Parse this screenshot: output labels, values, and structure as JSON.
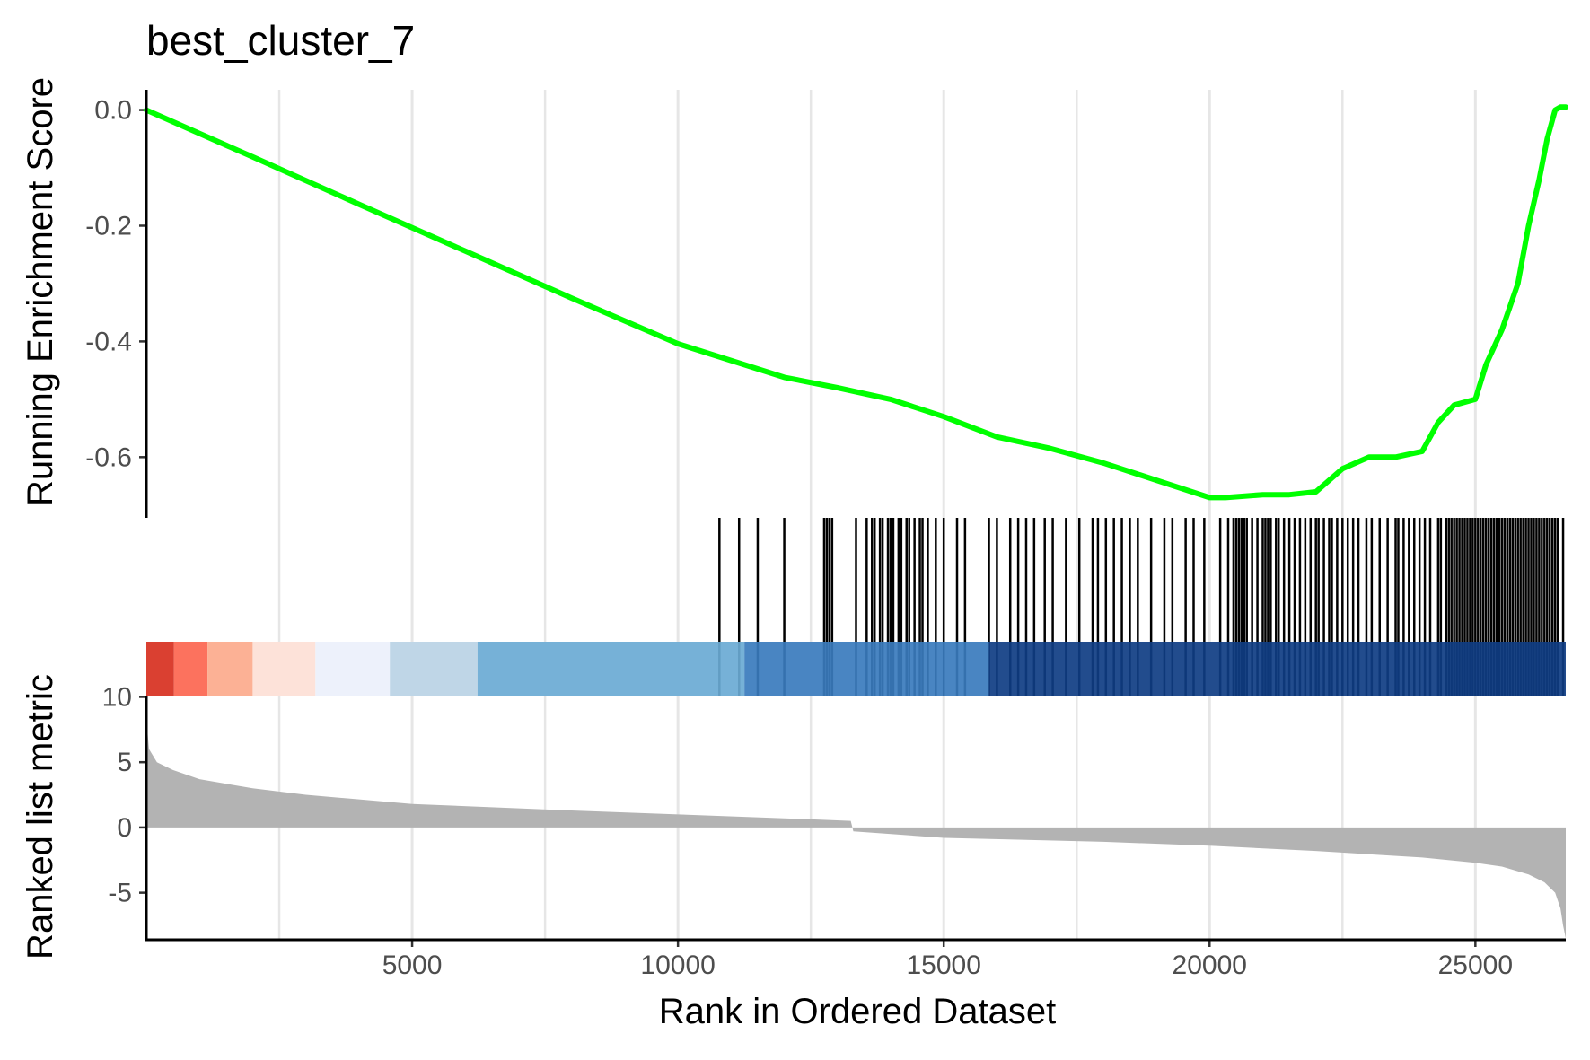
{
  "chart_data": {
    "type": "line",
    "title": "best_cluster_7",
    "xlabel": "Rank in Ordered Dataset",
    "xlim": [
      0,
      26700
    ],
    "x_ticks": [
      "5000",
      "10000",
      "15000",
      "20000",
      "25000"
    ],
    "grid": "vertical major and minor lines in upper panels",
    "panels": [
      {
        "name": "running_enrichment",
        "ylabel": "Running Enrichment Score",
        "ylim": [
          -0.705,
          0.035
        ],
        "y_ticks": [
          "0.0",
          "-0.2",
          "-0.4",
          "-0.6"
        ],
        "series": [
          {
            "color": "#00ff00",
            "x": [
              0,
              2000,
              4000,
              6000,
              8000,
              10000,
              12000,
              13000,
              14000,
              15000,
              16000,
              17000,
              18000,
              19000,
              20000,
              20300,
              21000,
              21500,
              22000,
              22500,
              23000,
              23500,
              24000,
              24300,
              24600,
              25000,
              25200,
              25500,
              25800,
              26000,
              26200,
              26350,
              26500,
              26600,
              26700
            ],
            "y": [
              0.0,
              -0.081,
              -0.163,
              -0.244,
              -0.325,
              -0.404,
              -0.462,
              -0.48,
              -0.5,
              -0.53,
              -0.565,
              -0.585,
              -0.61,
              -0.64,
              -0.67,
              -0.67,
              -0.665,
              -0.665,
              -0.66,
              -0.62,
              -0.6,
              -0.6,
              -0.59,
              -0.54,
              -0.51,
              -0.5,
              -0.44,
              -0.38,
              -0.3,
              -0.2,
              -0.12,
              -0.05,
              0.0,
              0.005,
              0.005
            ]
          }
        ]
      },
      {
        "name": "gene_set_hits",
        "hits": [
          10780,
          11150,
          11500,
          12000,
          12750,
          12800,
          12850,
          12900,
          13350,
          13550,
          13650,
          13700,
          13800,
          13850,
          13950,
          14000,
          14050,
          14150,
          14200,
          14300,
          14350,
          14450,
          14550,
          14600,
          14700,
          14850,
          15000,
          15250,
          15400,
          15850,
          16000,
          16250,
          16400,
          16550,
          16700,
          16900,
          17050,
          17300,
          17550,
          17800,
          17900,
          18050,
          18200,
          18350,
          18500,
          18650,
          18900,
          19150,
          19300,
          19550,
          19700,
          19900,
          20200,
          20350,
          20450,
          20500,
          20550,
          20600,
          20650,
          20700,
          20800,
          20900,
          21000,
          21050,
          21100,
          21150,
          21250,
          21300,
          21400,
          21500,
          21600,
          21700,
          21800,
          21900,
          22000,
          22050,
          22150,
          22250,
          22300,
          22400,
          22500,
          22600,
          22700,
          22800,
          22950,
          23050,
          23200,
          23350,
          23500,
          23550,
          23650,
          23750,
          23850,
          23950,
          24050,
          24150,
          24300,
          24350,
          24450,
          24500,
          24550,
          24600,
          24650,
          24700,
          24750,
          24800,
          24850,
          24900,
          24950,
          25000,
          25050,
          25100,
          25150,
          25200,
          25250,
          25300,
          25350,
          25400,
          25450,
          25500,
          25550,
          25600,
          25650,
          25700,
          25750,
          25800,
          25850,
          25900,
          25950,
          26000,
          26050,
          26100,
          26150,
          26200,
          26250,
          26300,
          26350,
          26400,
          26450,
          26500,
          26550,
          26650
        ]
      },
      {
        "name": "rank_color_band",
        "segments": [
          {
            "from": 0,
            "to": 520,
            "color": "#d7301f"
          },
          {
            "from": 520,
            "to": 1150,
            "color": "#fc6650"
          },
          {
            "from": 1150,
            "to": 2000,
            "color": "#fcaa8c"
          },
          {
            "from": 2000,
            "to": 3180,
            "color": "#fde0d6"
          },
          {
            "from": 3180,
            "to": 4580,
            "color": "#ebf0fb"
          },
          {
            "from": 4580,
            "to": 6230,
            "color": "#bad2e5"
          },
          {
            "from": 6230,
            "to": 11250,
            "color": "#6aaad4"
          },
          {
            "from": 11250,
            "to": 15850,
            "color": "#3a7bbd"
          },
          {
            "from": 15850,
            "to": 26700,
            "color": "#0f3d83"
          }
        ]
      },
      {
        "name": "ranked_list_metric",
        "ylabel": "Ranked list metric",
        "ylim": [
          -8.6,
          10.1
        ],
        "y_ticks": [
          "10",
          "5",
          "0",
          "-5"
        ],
        "series": [
          {
            "color": "#b3b3b3",
            "x": [
              0,
              50,
              200,
              500,
              1000,
              2000,
              3000,
              5000,
              8000,
              10000,
              12000,
              13250,
              13300,
              15000,
              18000,
              20000,
              22000,
              24000,
              25000,
              25500,
              26000,
              26300,
              26500,
              26600,
              26650,
              26700
            ],
            "y": [
              8.3,
              6.0,
              5.0,
              4.4,
              3.7,
              3.0,
              2.5,
              1.8,
              1.3,
              1.0,
              0.7,
              0.5,
              -0.3,
              -0.8,
              -1.1,
              -1.4,
              -1.8,
              -2.3,
              -2.7,
              -3.0,
              -3.6,
              -4.2,
              -5.0,
              -6.2,
              -7.5,
              -8.5
            ]
          }
        ]
      }
    ]
  }
}
